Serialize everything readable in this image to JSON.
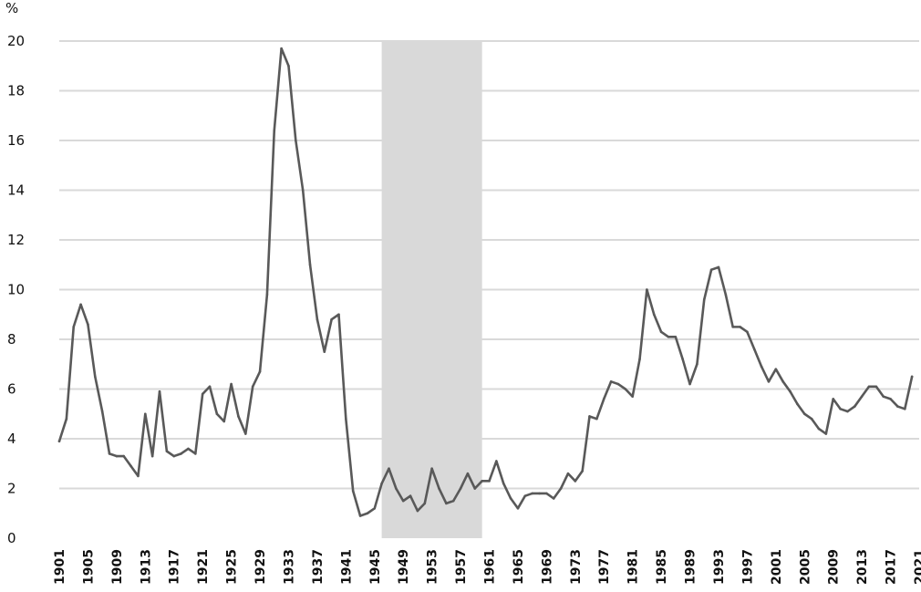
{
  "chart_data": {
    "type": "line",
    "title": "",
    "xlabel": "",
    "ylabel": "",
    "unit_label": "%",
    "xlim": [
      1901,
      2021
    ],
    "ylim": [
      0,
      20
    ],
    "y_ticks": [
      0,
      2,
      4,
      6,
      8,
      10,
      12,
      14,
      16,
      18,
      20
    ],
    "x_ticks": [
      1901,
      1905,
      1909,
      1913,
      1917,
      1921,
      1925,
      1929,
      1933,
      1937,
      1941,
      1945,
      1949,
      1953,
      1957,
      1961,
      1965,
      1969,
      1973,
      1977,
      1981,
      1985,
      1989,
      1993,
      1997,
      2001,
      2005,
      2009,
      2013,
      2017,
      2021
    ],
    "grid": true,
    "shaded_region": [
      1946,
      1960
    ],
    "colors": {
      "line": "#595959",
      "grid": "#d9d9d9",
      "shade": "#d9d9d9"
    },
    "series": [
      {
        "name": "",
        "x": [
          1901,
          1902,
          1903,
          1904,
          1905,
          1906,
          1907,
          1908,
          1909,
          1910,
          1911,
          1912,
          1913,
          1914,
          1915,
          1916,
          1917,
          1918,
          1919,
          1920,
          1921,
          1922,
          1923,
          1924,
          1925,
          1926,
          1927,
          1928,
          1929,
          1930,
          1931,
          1932,
          1933,
          1934,
          1935,
          1936,
          1937,
          1938,
          1939,
          1940,
          1941,
          1942,
          1943,
          1944,
          1945,
          1946,
          1947,
          1948,
          1949,
          1950,
          1951,
          1952,
          1953,
          1954,
          1955,
          1956,
          1957,
          1958,
          1959,
          1960,
          1961,
          1962,
          1963,
          1964,
          1965,
          1966,
          1967,
          1968,
          1969,
          1970,
          1971,
          1972,
          1973,
          1974,
          1975,
          1976,
          1977,
          1978,
          1979,
          1980,
          1981,
          1982,
          1983,
          1984,
          1985,
          1986,
          1987,
          1988,
          1989,
          1990,
          1991,
          1992,
          1993,
          1994,
          1995,
          1996,
          1997,
          1998,
          1999,
          2000,
          2001,
          2002,
          2003,
          2004,
          2005,
          2006,
          2007,
          2008,
          2009,
          2010,
          2011,
          2012,
          2013,
          2014,
          2015,
          2016,
          2017,
          2018,
          2019,
          2020
        ],
        "y": [
          3.9,
          4.8,
          8.5,
          9.4,
          8.6,
          6.5,
          5.1,
          3.4,
          3.3,
          3.3,
          2.9,
          2.5,
          5.0,
          3.3,
          5.9,
          3.5,
          3.3,
          3.4,
          3.6,
          3.4,
          5.8,
          6.1,
          5.0,
          4.7,
          6.2,
          4.9,
          4.2,
          6.1,
          6.7,
          9.8,
          16.4,
          19.7,
          19.0,
          16.0,
          14.0,
          11.0,
          8.8,
          7.5,
          8.8,
          9.0,
          4.8,
          1.9,
          0.9,
          1.0,
          1.2,
          2.2,
          2.8,
          2.0,
          1.5,
          1.7,
          1.1,
          1.4,
          2.8,
          2.0,
          1.4,
          1.5,
          2.0,
          2.6,
          2.0,
          2.3,
          2.3,
          3.1,
          2.2,
          1.6,
          1.2,
          1.7,
          1.8,
          1.8,
          1.8,
          1.6,
          2.0,
          2.6,
          2.3,
          2.7,
          4.9,
          4.8,
          5.6,
          6.3,
          6.2,
          6.0,
          5.7,
          7.2,
          10.0,
          9.0,
          8.3,
          8.1,
          8.1,
          7.2,
          6.2,
          7.0,
          9.6,
          10.8,
          10.9,
          9.8,
          8.5,
          8.5,
          8.3,
          7.6,
          6.9,
          6.3,
          6.8,
          6.3,
          5.9,
          5.4,
          5.0,
          4.8,
          4.4,
          4.2,
          5.6,
          5.2,
          5.1,
          5.3,
          5.7,
          6.1,
          6.1,
          5.7,
          5.6,
          5.3,
          5.2,
          6.5
        ]
      }
    ]
  }
}
